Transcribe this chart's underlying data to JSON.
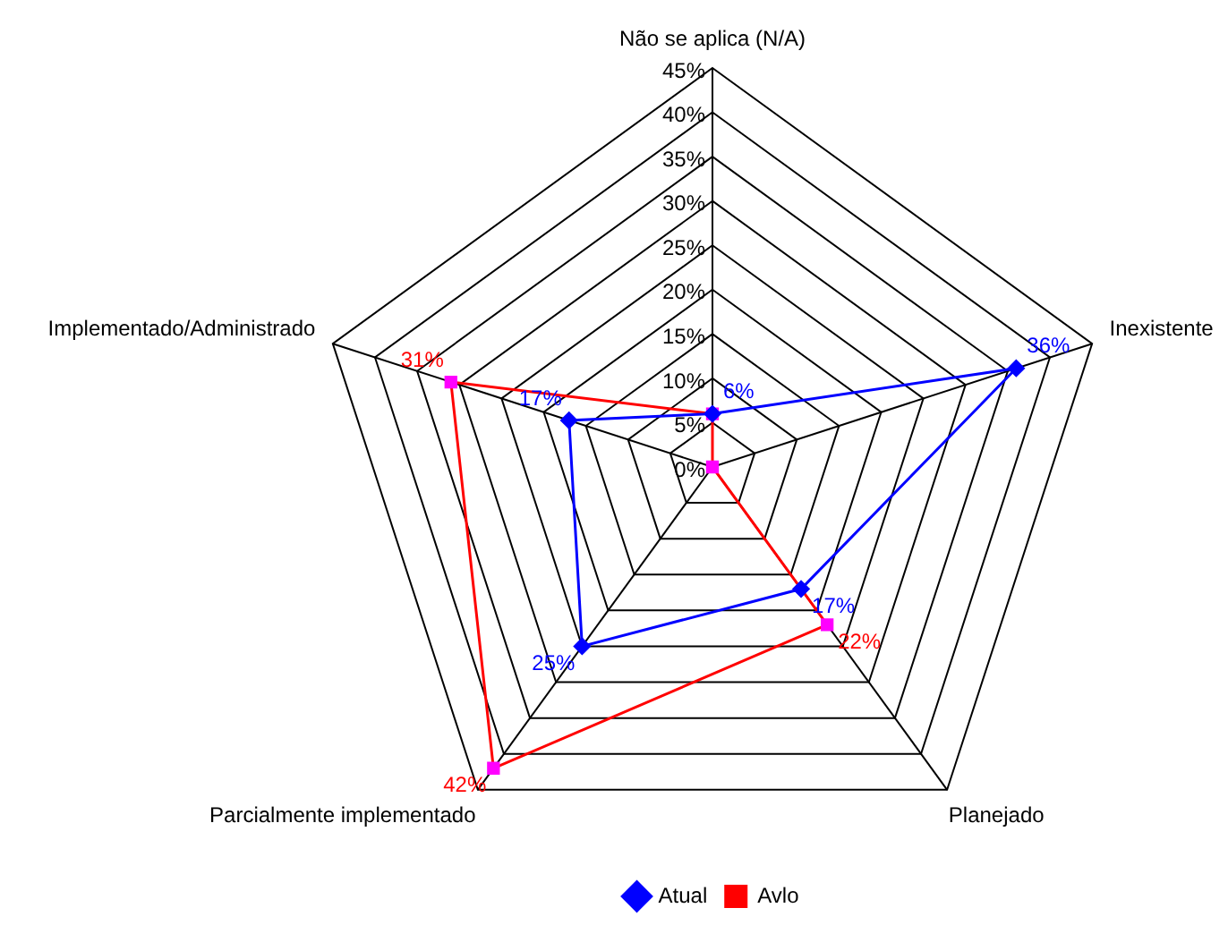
{
  "chart_data": {
    "type": "radar",
    "categories": [
      "Não se aplica (N/A)",
      "Inexistente",
      "Planejado",
      "Parcialmente implementado",
      "Implementado/Administrado"
    ],
    "series": [
      {
        "name": "Atual",
        "color": "#0000ff",
        "marker": "diamond",
        "values": [
          6,
          36,
          17,
          25,
          17
        ],
        "value_labels": [
          "6%",
          "36%",
          "17%",
          "25%",
          "17%"
        ]
      },
      {
        "name": "Avlo",
        "color": "#ff0000",
        "colors": [
          "#ff00ff",
          "#ff00ff",
          "#ff00ff",
          "#ff00ff",
          "#ff00ff"
        ],
        "marker": "square",
        "values": [
          6,
          0,
          22,
          42,
          31
        ],
        "value_labels": [
          null,
          null,
          "22%",
          "42%",
          "31%"
        ]
      }
    ],
    "ylim": [
      0,
      45
    ],
    "yticks": [
      {
        "value": 0,
        "label": "0%"
      },
      {
        "value": 5,
        "label": "5%"
      },
      {
        "value": 10,
        "label": "10%"
      },
      {
        "value": 15,
        "label": "15%"
      },
      {
        "value": 20,
        "label": "20%"
      },
      {
        "value": 25,
        "label": "25%"
      },
      {
        "value": 30,
        "label": "30%"
      },
      {
        "value": 35,
        "label": "35%"
      },
      {
        "value": 40,
        "label": "40%"
      },
      {
        "value": 45,
        "label": "45%"
      }
    ],
    "grid": true,
    "legend": "bottom"
  }
}
